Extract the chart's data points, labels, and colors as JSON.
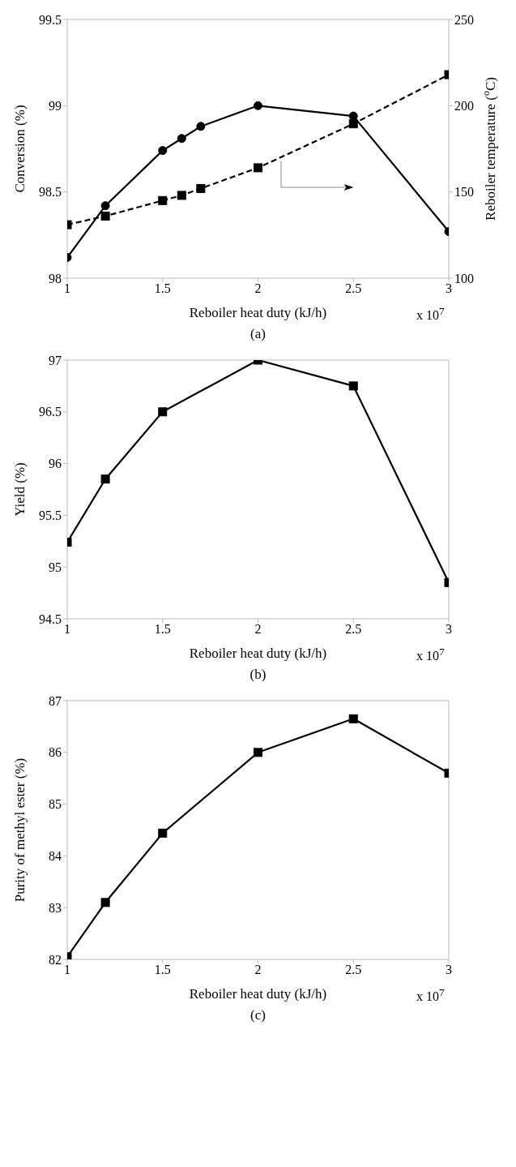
{
  "chart_data": [
    {
      "type": "line",
      "xlabel": "Reboiler heat duty (kJ/h)",
      "ylabel": "Conversion (%)",
      "y2label": "Reboiler temperature ($^{o}$C)",
      "x": [
        1,
        1.2,
        1.5,
        1.6,
        1.7,
        2,
        2.5,
        3
      ],
      "series": [
        {
          "color": "#000000",
          "marker": "circle",
          "line_style": "solid",
          "values": [
            98.12,
            98.42,
            98.74,
            98.81,
            98.88,
            99.0,
            98.94,
            98.27
          ]
        },
        {
          "color": "#000000",
          "marker": "square",
          "line_style": "dashed",
          "axis": "y2",
          "values": [
            131,
            136,
            145,
            148,
            152,
            164,
            189.5,
            218
          ]
        }
      ],
      "xlim": [
        1,
        3
      ],
      "xticks": [
        1,
        1.5,
        2,
        2.5,
        3
      ],
      "ylim": [
        98,
        99.5
      ],
      "yticks": [
        98,
        98.5,
        99,
        99.5
      ],
      "y2lim": [
        100,
        250
      ],
      "y2ticks": [
        100,
        150,
        200,
        250
      ],
      "annotations": [
        "x 10$^{7}$",
        "(a)"
      ]
    },
    {
      "type": "line",
      "xlabel": "Reboiler heat duty (kJ/h)",
      "ylabel": "Yield (%)",
      "x": [
        1,
        1.2,
        1.5,
        2,
        2.5,
        3
      ],
      "series": [
        {
          "color": "#000000",
          "marker": "square",
          "line_style": "solid",
          "values": [
            95.24,
            95.85,
            96.5,
            97.0,
            96.75,
            94.85
          ]
        }
      ],
      "xlim": [
        1,
        3
      ],
      "xticks": [
        1,
        1.5,
        2,
        2.5,
        3
      ],
      "ylim": [
        94.5,
        97
      ],
      "yticks": [
        94.5,
        95,
        95.5,
        96,
        96.5,
        97
      ],
      "annotations": [
        "x 10$^{7}$",
        "(b)"
      ]
    },
    {
      "type": "line",
      "xlabel": "Reboiler heat duty (kJ/h)",
      "ylabel": "Purity of methyl ester (%)",
      "x": [
        1,
        1.2,
        1.5,
        2,
        2.5,
        3
      ],
      "series": [
        {
          "color": "#000000",
          "marker": "square",
          "line_style": "solid",
          "values": [
            82.05,
            83.1,
            84.44,
            86.0,
            86.65,
            85.6
          ]
        }
      ],
      "xlim": [
        1,
        3
      ],
      "xticks": [
        1,
        1.5,
        2,
        2.5,
        3
      ],
      "ylim": [
        82,
        87
      ],
      "yticks": [
        82,
        83,
        84,
        85,
        86,
        87
      ],
      "annotations": [
        "x 10$^{7}$",
        "(c)"
      ]
    }
  ]
}
